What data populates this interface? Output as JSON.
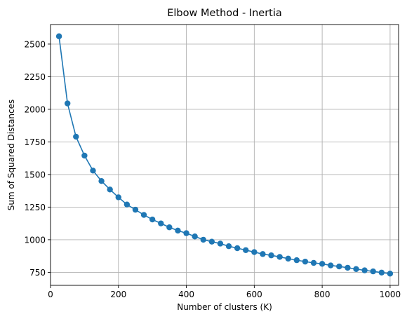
{
  "chart_data": {
    "type": "line",
    "title": "Elbow Method - Inertia",
    "xlabel": "Number of clusters (K)",
    "ylabel": "Sum of Squared Distances",
    "xlim": [
      0,
      1025
    ],
    "ylim": [
      650,
      2650
    ],
    "x_ticks": [
      "0",
      "200",
      "400",
      "600",
      "800",
      "1000"
    ],
    "y_ticks": [
      "750",
      "1000",
      "1250",
      "1500",
      "1750",
      "2000",
      "2250",
      "2500"
    ],
    "grid": true,
    "color": "#1f77b4",
    "series": [
      {
        "x": [
          25,
          50,
          75,
          100,
          125,
          150,
          175,
          200,
          225,
          250,
          275,
          300,
          325,
          350,
          375,
          400,
          425,
          450,
          475,
          500,
          525,
          550,
          575,
          600,
          625,
          650,
          675,
          700,
          725,
          750,
          775,
          800,
          825,
          850,
          875,
          900,
          925,
          950,
          975,
          1000
        ],
        "values": [
          2560,
          2045,
          1790,
          1645,
          1530,
          1450,
          1385,
          1325,
          1270,
          1230,
          1190,
          1155,
          1125,
          1095,
          1070,
          1050,
          1025,
          1000,
          985,
          970,
          950,
          935,
          920,
          905,
          890,
          880,
          868,
          855,
          843,
          832,
          822,
          815,
          803,
          795,
          785,
          775,
          765,
          757,
          748,
          740
        ]
      }
    ]
  }
}
